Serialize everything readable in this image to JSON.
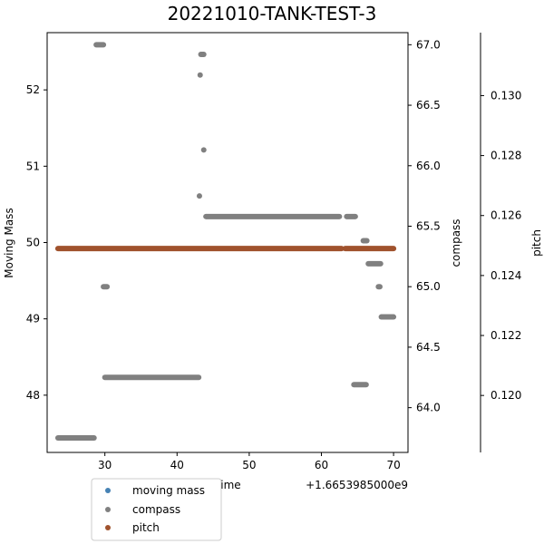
{
  "chart_data": {
    "type": "scatter",
    "title": "20221010-TANK-TEST-3",
    "xlabel": "Time",
    "x_offset_label": "+1.6653985000e9",
    "xlim": [
      22,
      72
    ],
    "x_ticks": [
      30,
      40,
      50,
      60,
      70
    ],
    "axes": {
      "left": {
        "label": "Moving Mass",
        "lim": [
          47.25,
          52.75
        ],
        "ticks": [
          48,
          49,
          50,
          51,
          52
        ]
      },
      "right1": {
        "label": "compass",
        "lim": [
          63.63,
          67.1
        ],
        "ticks": [
          64.0,
          64.5,
          65.0,
          65.5,
          66.0,
          66.5,
          67.0
        ],
        "tick_labels": [
          "64.0",
          "64.5",
          "65.0",
          "65.5",
          "66.0",
          "66.5",
          "67.0"
        ]
      },
      "right2": {
        "label": "pitch",
        "lim": [
          0.1181,
          0.1321
        ],
        "ticks": [
          0.12,
          0.122,
          0.124,
          0.126,
          0.128,
          0.13
        ],
        "tick_labels": [
          "0.120",
          "0.122",
          "0.124",
          "0.126",
          "0.128",
          "0.130"
        ]
      }
    },
    "series": [
      {
        "name": "moving mass",
        "color": "#4682b4",
        "axis": "left",
        "segments": []
      },
      {
        "name": "compass",
        "color": "#808080",
        "axis": "right1",
        "segments": [
          {
            "x": [
              23.5,
              28.5
            ],
            "y": 63.75
          },
          {
            "x": [
              28.8,
              29.8
            ],
            "y": 67.0
          },
          {
            "x": [
              29.8,
              30.3
            ],
            "y": 65.0
          },
          {
            "x": [
              30.0,
              43.0
            ],
            "y": 64.25
          },
          {
            "x": [
              43.1,
              43.1
            ],
            "y": 65.75
          },
          {
            "x": [
              43.2,
              43.2
            ],
            "y": 66.75
          },
          {
            "x": [
              43.3,
              43.7
            ],
            "y": 66.92
          },
          {
            "x": [
              43.7,
              43.7
            ],
            "y": 66.13
          },
          {
            "x": [
              44.0,
              62.5
            ],
            "y": 65.58
          },
          {
            "x": [
              63.5,
              64.7
            ],
            "y": 65.58
          },
          {
            "x": [
              64.5,
              66.2
            ],
            "y": 64.19
          },
          {
            "x": [
              65.8,
              66.3
            ],
            "y": 65.38
          },
          {
            "x": [
              66.5,
              68.2
            ],
            "y": 65.19
          },
          {
            "x": [
              67.9,
              68.1
            ],
            "y": 65.0
          },
          {
            "x": [
              68.3,
              70.0
            ],
            "y": 64.75
          }
        ]
      },
      {
        "name": "pitch",
        "color": "#a0522d",
        "axis": "right2",
        "segments": [
          {
            "x": [
              23.5,
              62.8
            ],
            "y": 0.1249
          },
          {
            "x": [
              63.3,
              70.0
            ],
            "y": 0.1249
          }
        ]
      }
    ],
    "legend": {
      "placement": "lower-left",
      "entries": [
        "moving mass",
        "compass",
        "pitch"
      ]
    },
    "grid": false
  }
}
